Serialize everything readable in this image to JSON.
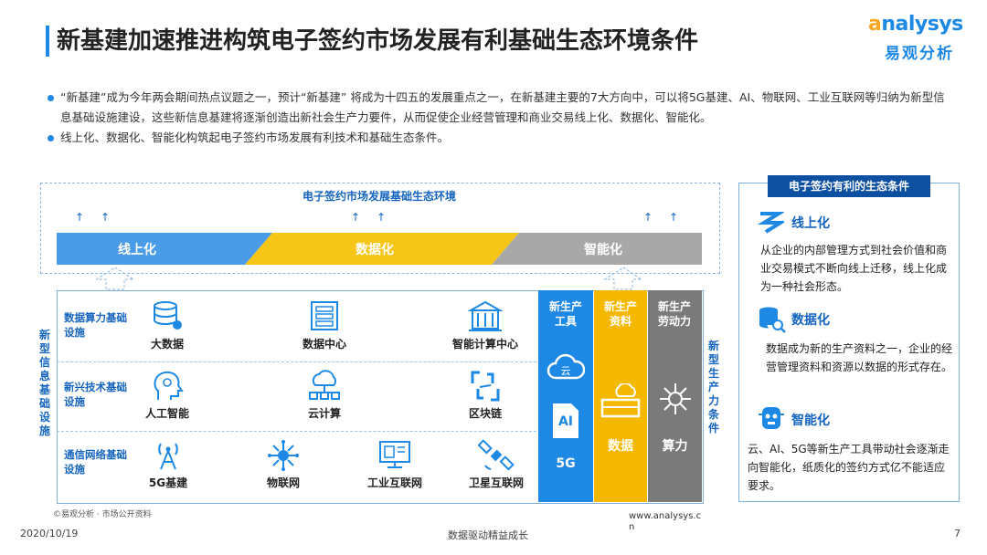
{
  "header": {
    "title": "新基建加速推进构筑电子签约市场发展有利基础生态环境条件",
    "logo_en": "nalysys",
    "logo_en_a": "a",
    "logo_cn": "易观分析"
  },
  "bullets": [
    "“新基建”成为今年两会期间热点议题之一，预计“新基建” 将成为十四五的发展重点之一，在新基建主要的7大方向中，可以将5G基建、AI、物联网、工业互联网等归纳为新型信息基础设施建设，这些新信息基建将逐渐创造出新社会生产力要件，从而促使企业经营管理和商业交易线上化、数据化、智能化。",
    "线上化、数据化、智能化构筑起电子签约市场发展有利技术和基础生态条件。"
  ],
  "ecosystem": {
    "title": "电子签约市场发展基础生态环境",
    "bands": [
      "线上化",
      "数据化",
      "智能化"
    ]
  },
  "infrastructure": {
    "vertical_label": "新型信息基础设施",
    "rows": [
      {
        "label": "数据算力基础设施",
        "items": [
          "大数据",
          "数据中心",
          "智能计算中心"
        ]
      },
      {
        "label": "新兴技术基础设施",
        "items": [
          "人工智能",
          "云计算",
          "区块链"
        ]
      },
      {
        "label": "通信网络基础设施",
        "items": [
          "5G基建",
          "物联网",
          "工业互联网",
          "卫星互联网"
        ]
      }
    ]
  },
  "production": {
    "columns": [
      {
        "head": "新生产工具",
        "labels": [
          "AI",
          "5G"
        ],
        "color": "#1e88e5"
      },
      {
        "head": "新生产资料",
        "labels": [
          "数据"
        ],
        "color": "#f5b800"
      },
      {
        "head": "新生产劳动力",
        "labels": [
          "算力"
        ],
        "color": "#7a7a7a"
      }
    ],
    "cloud_text": "云",
    "vertical_label": "新型生产力条件"
  },
  "right_panel": {
    "header": "电子签约有利的生态条件",
    "sections": [
      {
        "title": "线上化",
        "text": "从企业的内部管理方式到社会价值和商业交易模式不断向线上迁移，线上化成为一种社会形态。"
      },
      {
        "title": "数据化",
        "text": "数据成为新的生产资料之一，企业的经营管理资料和资源以数据的形式存在。"
      },
      {
        "title": "智能化",
        "text": "云、AI、5G等新生产工具带动社会逐渐走向智能化，纸质化的签约方式亿不能适应要求。"
      }
    ]
  },
  "footer": {
    "source": "©易观分析 · 市场公开资料",
    "url": "www.analysys.cn",
    "date": "2020/10/19",
    "slogan": "数据驱动精益成长",
    "page": "7"
  },
  "colors": {
    "blue": "#1e88e5",
    "yellow": "#f5b800",
    "gray": "#7a7a7a",
    "dark_blue": "#0d4fa0"
  }
}
